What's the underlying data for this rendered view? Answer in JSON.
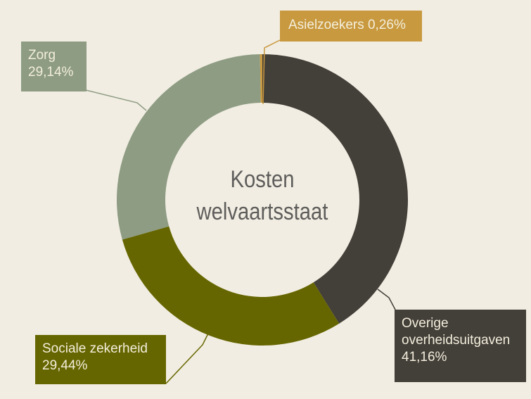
{
  "chart_data": {
    "type": "pie",
    "subtype": "donut",
    "title": "Kosten welvaartsstaat",
    "center_label": [
      "Kosten",
      "welvaartsstaat"
    ],
    "categories": [
      "Overige overheidsuitgaven",
      "Sociale zekerheid",
      "Zorg",
      "Asielzoekers"
    ],
    "values": [
      41.16,
      29.44,
      29.14,
      0.26
    ],
    "unit": "%",
    "colors": [
      "#433F39",
      "#666600",
      "#8E9C83",
      "#C9993F"
    ],
    "start_angle_deg": 0,
    "direction": "clockwise",
    "legend": "none (callout labels with leader lines)"
  },
  "labels": {
    "asielzoekers": {
      "text": "Asielzoekers 0,26%"
    },
    "zorg": {
      "name": "Zorg",
      "value": "29,14%"
    },
    "sociale": {
      "name": "Sociale zekerheid",
      "value": "29,44%"
    },
    "overige": {
      "line1": "Overige",
      "line2": "overheidsuitgaven",
      "value": "41,16%"
    }
  },
  "center": {
    "line1": "Kosten",
    "line2": "welvaartsstaat"
  },
  "colors": {
    "background": "#F1EDE2",
    "label_text": "#F3EEDC",
    "center_text": "#5E5D5B"
  }
}
